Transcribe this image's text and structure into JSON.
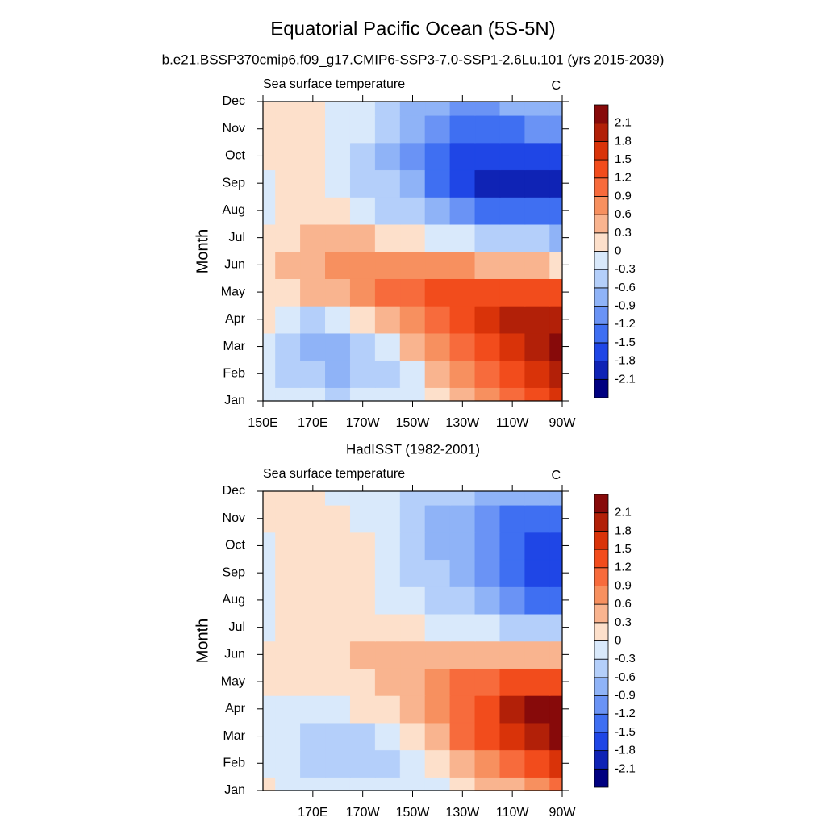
{
  "title": "Equatorial Pacific Ocean (5S-5N)",
  "chart_data": [
    {
      "type": "heatmap",
      "title": "b.e21.BSSP370cmip6.f09_g17.CMIP6-SSP3-7.0-SSP1-2.6Lu.101 (yrs 2015-2039)",
      "left_label": "Sea surface temperature",
      "right_label": "C",
      "y_label": "Month",
      "categories": [
        "Jan",
        "Feb",
        "Mar",
        "Apr",
        "May",
        "Jun",
        "Jul",
        "Aug",
        "Sep",
        "Oct",
        "Nov",
        "Dec"
      ],
      "x": [
        150,
        160,
        170,
        180,
        190,
        200,
        210,
        220,
        230,
        240,
        250,
        260,
        270
      ],
      "xlim": [
        150,
        270
      ],
      "xticks": [
        {
          "value": 150,
          "label": "150E"
        },
        {
          "value": 170,
          "label": "170E"
        },
        {
          "value": 190,
          "label": "170W"
        },
        {
          "value": 210,
          "label": "150W"
        },
        {
          "value": 230,
          "label": "130W"
        },
        {
          "value": 250,
          "label": "110W"
        },
        {
          "value": 270,
          "label": "90W"
        }
      ],
      "z": [
        [
          -0.1,
          -0.2,
          -0.2,
          -0.3,
          -0.2,
          -0.2,
          -0.1,
          0.2,
          0.5,
          0.8,
          1.1,
          1.4,
          1.7
        ],
        [
          -0.2,
          -0.4,
          -0.5,
          -0.6,
          -0.5,
          -0.3,
          0.0,
          0.4,
          0.8,
          1.1,
          1.4,
          1.7,
          1.9
        ],
        [
          0.0,
          -0.4,
          -0.7,
          -0.7,
          -0.4,
          0.0,
          0.4,
          0.8,
          1.2,
          1.5,
          1.8,
          2.0,
          2.2
        ],
        [
          0.1,
          -0.2,
          -0.3,
          -0.1,
          0.2,
          0.6,
          0.9,
          1.2,
          1.5,
          1.7,
          1.9,
          2.0,
          2.0
        ],
        [
          0.2,
          0.2,
          0.4,
          0.6,
          0.8,
          1.0,
          1.2,
          1.4,
          1.5,
          1.5,
          1.5,
          1.4,
          1.3
        ],
        [
          0.2,
          0.4,
          0.6,
          0.7,
          0.8,
          0.9,
          0.9,
          0.8,
          0.7,
          0.6,
          0.5,
          0.4,
          0.3
        ],
        [
          0.1,
          0.3,
          0.5,
          0.5,
          0.4,
          0.3,
          0.1,
          0.0,
          -0.2,
          -0.3,
          -0.4,
          -0.5,
          -0.6
        ],
        [
          -0.1,
          0.2,
          0.2,
          0.1,
          -0.1,
          -0.3,
          -0.5,
          -0.7,
          -0.9,
          -1.2,
          -1.3,
          -1.4,
          -1.3
        ],
        [
          0.0,
          0.2,
          0.1,
          -0.1,
          -0.3,
          -0.5,
          -0.8,
          -1.2,
          -1.6,
          -1.8,
          -1.9,
          -1.8,
          -1.9
        ],
        [
          0.1,
          0.2,
          0.1,
          -0.1,
          -0.3,
          -0.6,
          -0.9,
          -1.3,
          -1.5,
          -1.6,
          -1.6,
          -1.6,
          -1.5
        ],
        [
          0.1,
          0.2,
          0.1,
          0.0,
          -0.2,
          -0.5,
          -0.8,
          -1.0,
          -1.2,
          -1.3,
          -1.2,
          -1.1,
          -1.0
        ],
        [
          0.1,
          0.1,
          0.1,
          -0.1,
          -0.2,
          -0.4,
          -0.6,
          -0.8,
          -0.9,
          -0.9,
          -0.8,
          -0.7,
          -0.6
        ]
      ],
      "levels": [
        -2.1,
        -1.8,
        -1.5,
        -1.2,
        -0.9,
        -0.6,
        -0.3,
        0,
        0.3,
        0.6,
        0.9,
        1.2,
        1.5,
        1.8,
        2.1
      ],
      "colors": [
        "#000080",
        "#0f23b5",
        "#1f46e6",
        "#3f6ff2",
        "#6a93f5",
        "#8fb3f7",
        "#b4cffa",
        "#d9e9fb",
        "#fde0cb",
        "#f9b48f",
        "#f7905f",
        "#f76b3c",
        "#f24c1c",
        "#d93309",
        "#b22008",
        "#870a0a"
      ]
    },
    {
      "type": "heatmap",
      "title": "HadISST (1982-2001)",
      "left_label": "Sea surface temperature",
      "right_label": "C",
      "y_label": "Month",
      "categories": [
        "Jan",
        "Feb",
        "Mar",
        "Apr",
        "May",
        "Jun",
        "Jul",
        "Aug",
        "Sep",
        "Oct",
        "Nov",
        "Dec"
      ],
      "x": [
        150,
        160,
        170,
        180,
        190,
        200,
        210,
        220,
        230,
        240,
        250,
        260,
        270
      ],
      "xlim": [
        150,
        270
      ],
      "xticks": [
        {
          "value": 170,
          "label": "170E"
        },
        {
          "value": 190,
          "label": "170W"
        },
        {
          "value": 210,
          "label": "150W"
        },
        {
          "value": 230,
          "label": "130W"
        },
        {
          "value": 250,
          "label": "110W"
        },
        {
          "value": 270,
          "label": "90W"
        }
      ],
      "z": [
        [
          0.1,
          -0.1,
          -0.1,
          -0.2,
          -0.2,
          -0.2,
          -0.1,
          0.0,
          0.2,
          0.4,
          0.6,
          0.9,
          1.0
        ],
        [
          -0.1,
          -0.2,
          -0.3,
          -0.4,
          -0.4,
          -0.3,
          -0.1,
          0.2,
          0.5,
          0.8,
          1.1,
          1.4,
          1.7
        ],
        [
          -0.1,
          -0.2,
          -0.4,
          -0.4,
          -0.3,
          -0.1,
          0.2,
          0.6,
          1.0,
          1.4,
          1.8,
          2.1,
          2.2
        ],
        [
          0.0,
          -0.1,
          -0.2,
          -0.1,
          0.1,
          0.3,
          0.6,
          0.9,
          1.2,
          1.5,
          1.9,
          2.2,
          2.2
        ],
        [
          0.1,
          0.1,
          0.1,
          0.2,
          0.3,
          0.5,
          0.6,
          0.8,
          1.0,
          1.2,
          1.4,
          1.5,
          1.5
        ],
        [
          0.1,
          0.1,
          0.2,
          0.3,
          0.4,
          0.5,
          0.5,
          0.5,
          0.5,
          0.5,
          0.5,
          0.5,
          0.4
        ],
        [
          0.0,
          0.1,
          0.2,
          0.2,
          0.2,
          0.2,
          0.1,
          0.0,
          -0.1,
          -0.2,
          -0.3,
          -0.4,
          -0.5
        ],
        [
          -0.1,
          0.1,
          0.2,
          0.2,
          0.1,
          0.0,
          -0.2,
          -0.3,
          -0.5,
          -0.8,
          -1.0,
          -1.2,
          -1.2
        ],
        [
          -0.1,
          0.1,
          0.2,
          0.3,
          0.1,
          -0.1,
          -0.3,
          -0.5,
          -0.8,
          -1.1,
          -1.4,
          -1.6,
          -1.6
        ],
        [
          0.0,
          0.2,
          0.2,
          0.2,
          0.1,
          -0.1,
          -0.3,
          -0.6,
          -0.8,
          -1.1,
          -1.3,
          -1.5,
          -1.5
        ],
        [
          0.1,
          0.2,
          0.2,
          0.2,
          0.0,
          -0.2,
          -0.4,
          -0.6,
          -0.8,
          -1.0,
          -1.2,
          -1.3,
          -1.2
        ],
        [
          0.1,
          0.2,
          0.1,
          0.0,
          -0.1,
          -0.2,
          -0.3,
          -0.4,
          -0.5,
          -0.6,
          -0.7,
          -0.8,
          -0.8
        ]
      ],
      "levels": [
        -2.1,
        -1.8,
        -1.5,
        -1.2,
        -0.9,
        -0.6,
        -0.3,
        0,
        0.3,
        0.6,
        0.9,
        1.2,
        1.5,
        1.8,
        2.1
      ],
      "colors": [
        "#000080",
        "#0f23b5",
        "#1f46e6",
        "#3f6ff2",
        "#6a93f5",
        "#8fb3f7",
        "#b4cffa",
        "#d9e9fb",
        "#fde0cb",
        "#f9b48f",
        "#f7905f",
        "#f76b3c",
        "#f24c1c",
        "#d93309",
        "#b22008",
        "#870a0a"
      ]
    }
  ]
}
